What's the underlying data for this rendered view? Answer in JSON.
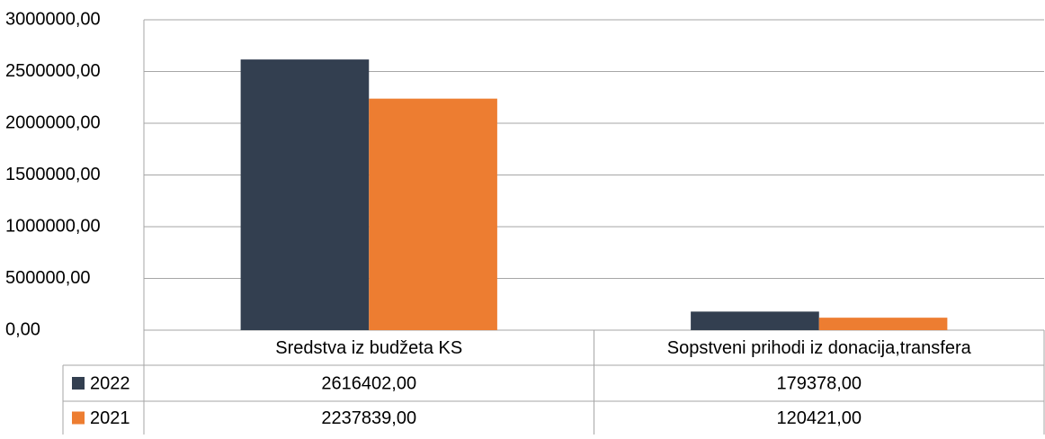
{
  "chart_data": {
    "type": "bar",
    "categories": [
      "Sredstva iz budžeta KS",
      "Sopstveni prihodi iz donacija,transfera"
    ],
    "series": [
      {
        "name": "2022",
        "color": "#333f50",
        "values": [
          2616402,
          179378
        ],
        "value_labels": [
          "2616402,00",
          "179378,00"
        ]
      },
      {
        "name": "2021",
        "color": "#ed7d31",
        "values": [
          2237839,
          120421
        ],
        "value_labels": [
          "2237839,00",
          "120421,00"
        ]
      }
    ],
    "ylim": [
      0,
      3000000
    ],
    "yticks": [
      {
        "value": 0,
        "label": "0,00"
      },
      {
        "value": 500000,
        "label": "500000,00"
      },
      {
        "value": 1000000,
        "label": "1000000,00"
      },
      {
        "value": 1500000,
        "label": "1500000,00"
      },
      {
        "value": 2000000,
        "label": "2000000,00"
      },
      {
        "value": 2500000,
        "label": "2500000,00"
      },
      {
        "value": 3000000,
        "label": "3000000,00"
      }
    ],
    "grid": true
  }
}
